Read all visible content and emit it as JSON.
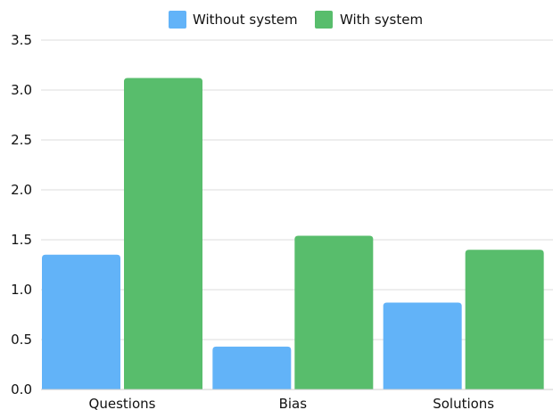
{
  "chart_data": {
    "type": "bar",
    "categories": [
      "Questions",
      "Bias",
      "Solutions"
    ],
    "series": [
      {
        "name": "Without system",
        "values": [
          1.35,
          0.43,
          0.87
        ],
        "color": "#62b3f8"
      },
      {
        "name": "With system",
        "values": [
          3.12,
          1.54,
          1.4
        ],
        "color": "#58bd6c"
      }
    ],
    "yticks": [
      "0.0",
      "0.5",
      "1.0",
      "1.5",
      "2.0",
      "2.5",
      "3.0",
      "3.5"
    ],
    "ylim": [
      0,
      3.5
    ],
    "grid": true,
    "legend_position": "top"
  }
}
